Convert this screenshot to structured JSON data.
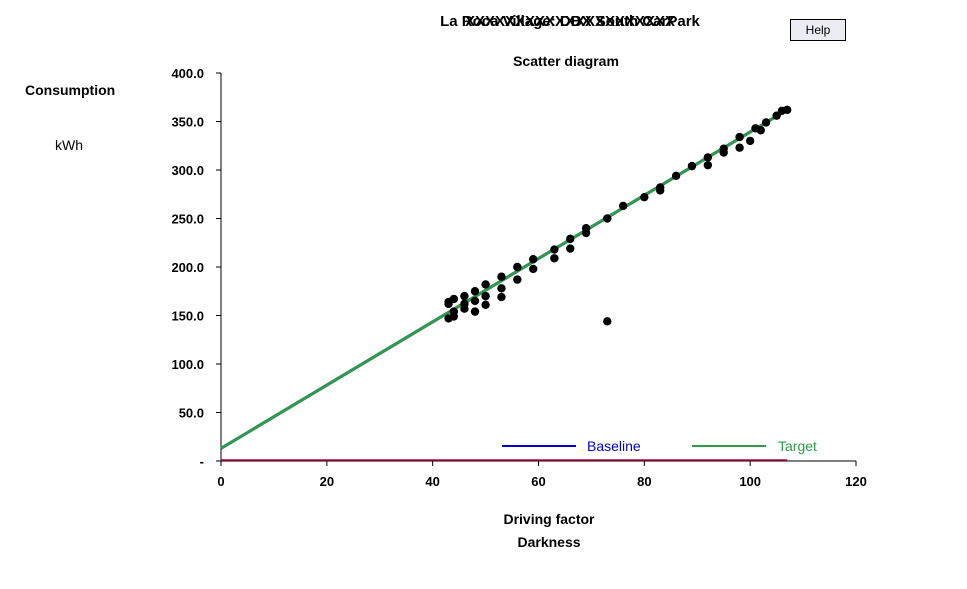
{
  "header": {
    "title_underlay": "XXXXXXXXXXXXXXXXXXXXX",
    "title": "La Roca Village: DBX South CarPark",
    "help_label": "Help"
  },
  "chart_data": {
    "type": "scatter",
    "title": "Scatter diagram",
    "ylabel": "Consumption",
    "yunit": "kWh",
    "xlabel": "Driving factor",
    "xlabel2": "Darkness",
    "xlim": [
      0,
      120
    ],
    "ylim": [
      0,
      400
    ],
    "x_ticks": [
      0,
      20,
      40,
      60,
      80,
      100,
      120
    ],
    "y_ticks": [
      0,
      50,
      100,
      150,
      200,
      250,
      300,
      350,
      400
    ],
    "y_tick_labels": [
      "-",
      "50.0",
      "100.0",
      "150.0",
      "200.0",
      "250.0",
      "300.0",
      "350.0",
      "400.0"
    ],
    "grid": false,
    "legend_position": "bottom-right",
    "points": [
      [
        43,
        164
      ],
      [
        43,
        162
      ],
      [
        43,
        147
      ],
      [
        44,
        167
      ],
      [
        44,
        154
      ],
      [
        44,
        149
      ],
      [
        46,
        170
      ],
      [
        46,
        162
      ],
      [
        46,
        157
      ],
      [
        48,
        175
      ],
      [
        48,
        165
      ],
      [
        48,
        154
      ],
      [
        50,
        182
      ],
      [
        50,
        170
      ],
      [
        50,
        161
      ],
      [
        53,
        190
      ],
      [
        53,
        178
      ],
      [
        53,
        169
      ],
      [
        56,
        200
      ],
      [
        56,
        187
      ],
      [
        59,
        208
      ],
      [
        59,
        198
      ],
      [
        63,
        218
      ],
      [
        63,
        209
      ],
      [
        66,
        229
      ],
      [
        66,
        219
      ],
      [
        69,
        240
      ],
      [
        69,
        235
      ],
      [
        73,
        250
      ],
      [
        73,
        144
      ],
      [
        76,
        263
      ],
      [
        80,
        272
      ],
      [
        83,
        282
      ],
      [
        83,
        279
      ],
      [
        86,
        294
      ],
      [
        89,
        304
      ],
      [
        92,
        313
      ],
      [
        92,
        305
      ],
      [
        95,
        322
      ],
      [
        95,
        318
      ],
      [
        98,
        334
      ],
      [
        98,
        323
      ],
      [
        100,
        330
      ],
      [
        101,
        343
      ],
      [
        102,
        341
      ],
      [
        103,
        349
      ],
      [
        105,
        356
      ],
      [
        106,
        361
      ],
      [
        107,
        362
      ]
    ],
    "series": [
      {
        "name": "Baseline",
        "color": "#0000cc",
        "line": [
          [
            0,
            13
          ],
          [
            107,
            362
          ]
        ]
      },
      {
        "name": "Target",
        "color": "#2e9a4a",
        "line": [
          [
            0,
            13
          ],
          [
            107,
            362
          ]
        ]
      }
    ],
    "reference_line": {
      "color": "#c0003c",
      "line": [
        [
          0,
          0
        ],
        [
          107,
          0
        ]
      ]
    },
    "point_color": "#000000"
  }
}
